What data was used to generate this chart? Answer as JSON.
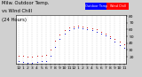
{
  "title_line1": "Milw. Outdoor Temp.",
  "title_line2": "vs Wind Chill",
  "title_line3": "(24 Hours)",
  "outer_bg": "#d0d0d0",
  "plot_bg": "#ffffff",
  "grid_color": "#bbbbbb",
  "temp_color": "#cc0000",
  "wc_color": "#0000cc",
  "ylim": [
    10,
    82
  ],
  "xlim": [
    -0.5,
    23.5
  ],
  "yticks": [
    20,
    30,
    40,
    50,
    60,
    70,
    80
  ],
  "xticks": [
    0,
    1,
    2,
    3,
    4,
    5,
    6,
    7,
    8,
    9,
    10,
    11,
    12,
    13,
    14,
    15,
    16,
    17,
    18,
    19,
    20,
    21,
    22,
    23
  ],
  "x_labels": [
    "12",
    "1",
    "2",
    "3",
    "4",
    "5",
    "6",
    "7",
    "8",
    "9",
    "10",
    "11",
    "12",
    "1",
    "2",
    "3",
    "4",
    "5",
    "6",
    "7",
    "8",
    "9",
    "10",
    "11"
  ],
  "temp_x": [
    0,
    1,
    2,
    3,
    4,
    5,
    6,
    7,
    8,
    9,
    10,
    11,
    12,
    13,
    14,
    15,
    16,
    17,
    18,
    19,
    20,
    21,
    22,
    23
  ],
  "temp_y": [
    22,
    21,
    20,
    20,
    21,
    22,
    23,
    31,
    43,
    53,
    59,
    63,
    65,
    66,
    65,
    63,
    62,
    60,
    57,
    54,
    50,
    46,
    42,
    38
  ],
  "wc_x": [
    0,
    1,
    2,
    3,
    4,
    5,
    6,
    7,
    8,
    9,
    10,
    11,
    12,
    13,
    14,
    15,
    16,
    17,
    18,
    19,
    20,
    21,
    22,
    23
  ],
  "wc_y": [
    13,
    12,
    11,
    11,
    12,
    13,
    14,
    21,
    35,
    46,
    54,
    59,
    62,
    63,
    62,
    60,
    59,
    57,
    54,
    51,
    47,
    42,
    37,
    33
  ],
  "marker_size": 1.8,
  "tick_fontsize": 3.2,
  "title_fontsize": 3.8,
  "legend_label_temp": "Outdoor Temp",
  "legend_label_wc": "Wind Chill",
  "legend_color_temp": "#0000ff",
  "legend_color_wc": "#ff0000"
}
